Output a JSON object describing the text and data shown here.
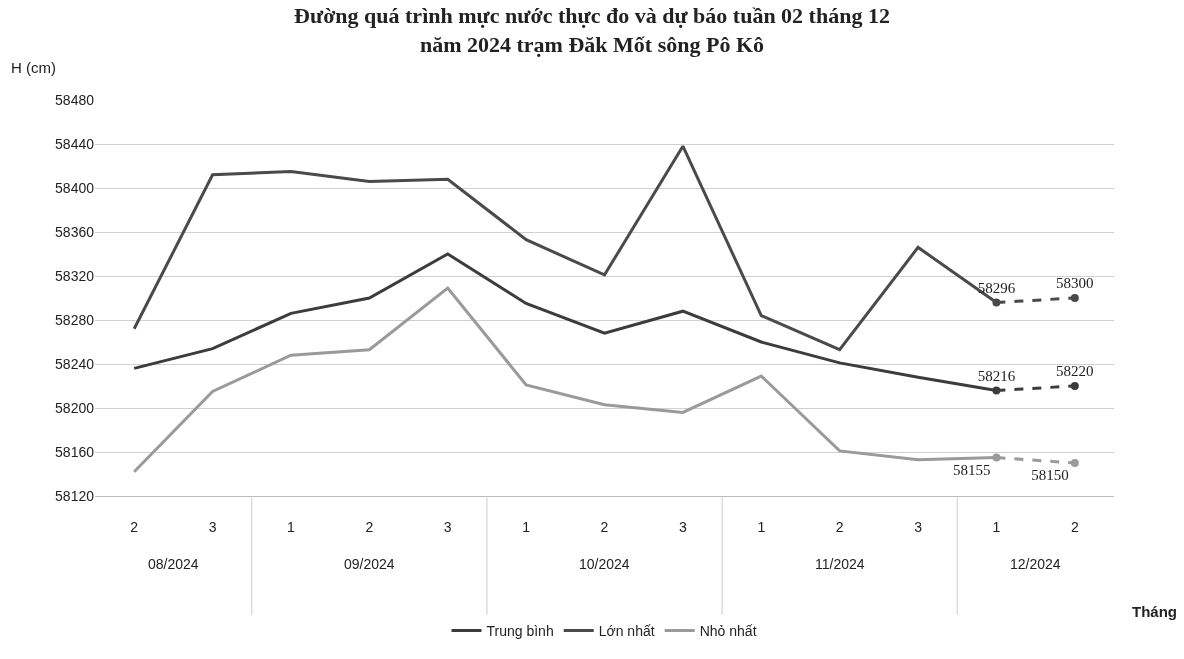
{
  "chart_data": {
    "type": "line",
    "title": "Đường quá trình mực nước thực đo và dự báo tuần 02 tháng 12\nnăm 2024 trạm Đăk Mốt sông Pô Kô",
    "ylabel": "H (cm)",
    "xlabel": "Tháng",
    "categories": [
      "2",
      "3",
      "1",
      "2",
      "3",
      "1",
      "2",
      "3",
      "1",
      "2",
      "3",
      "1",
      "2"
    ],
    "annotations": [
      "08/2024",
      "09/2024",
      "10/2024",
      "11/2024",
      "12/2024"
    ],
    "series": [
      {
        "name": "Trung bình",
        "color": "#3c3c3c",
        "values": [
          58236,
          58254,
          58286,
          58300,
          58340,
          58295,
          58268,
          58288,
          58260,
          58241,
          58228,
          58216,
          null
        ]
      },
      {
        "name": "Lớn nhất",
        "color": "#4a4a4a",
        "values": [
          58272,
          58412,
          58415,
          58406,
          58408,
          58353,
          58321,
          58438,
          58284,
          58253,
          58346,
          58296,
          null
        ]
      },
      {
        "name": "Nhỏ nhất",
        "color": "#9a9a9a",
        "values": [
          58142,
          58215,
          58248,
          58253,
          58309,
          58221,
          58203,
          58196,
          58229,
          58161,
          58153,
          58155,
          null
        ]
      },
      {
        "color": "#3c3c3c",
        "line_style": "dashed",
        "marker": "circle",
        "values": [
          null,
          null,
          null,
          null,
          null,
          null,
          null,
          null,
          null,
          null,
          null,
          58216,
          58220
        ],
        "value_labels": [
          null,
          null,
          null,
          null,
          null,
          null,
          null,
          null,
          null,
          null,
          null,
          "58216",
          "58220"
        ]
      },
      {
        "color": "#4a4a4a",
        "line_style": "dashed",
        "marker": "circle",
        "values": [
          null,
          null,
          null,
          null,
          null,
          null,
          null,
          null,
          null,
          null,
          null,
          58296,
          58300
        ],
        "value_labels": [
          null,
          null,
          null,
          null,
          null,
          null,
          null,
          null,
          null,
          null,
          null,
          "58296",
          "58300"
        ]
      },
      {
        "color": "#9a9a9a",
        "line_style": "dashed",
        "marker": "circle",
        "values": [
          null,
          null,
          null,
          null,
          null,
          null,
          null,
          null,
          null,
          null,
          null,
          58155,
          58150
        ],
        "value_labels": [
          null,
          null,
          null,
          null,
          null,
          null,
          null,
          null,
          null,
          null,
          null,
          "58155",
          "58150"
        ]
      }
    ],
    "ylim": [
      58120,
      58480
    ],
    "yticks": [
      58120,
      58160,
      58200,
      58240,
      58280,
      58320,
      58360,
      58400,
      58440,
      58480
    ],
    "grid": "y",
    "legend": "bottom"
  }
}
